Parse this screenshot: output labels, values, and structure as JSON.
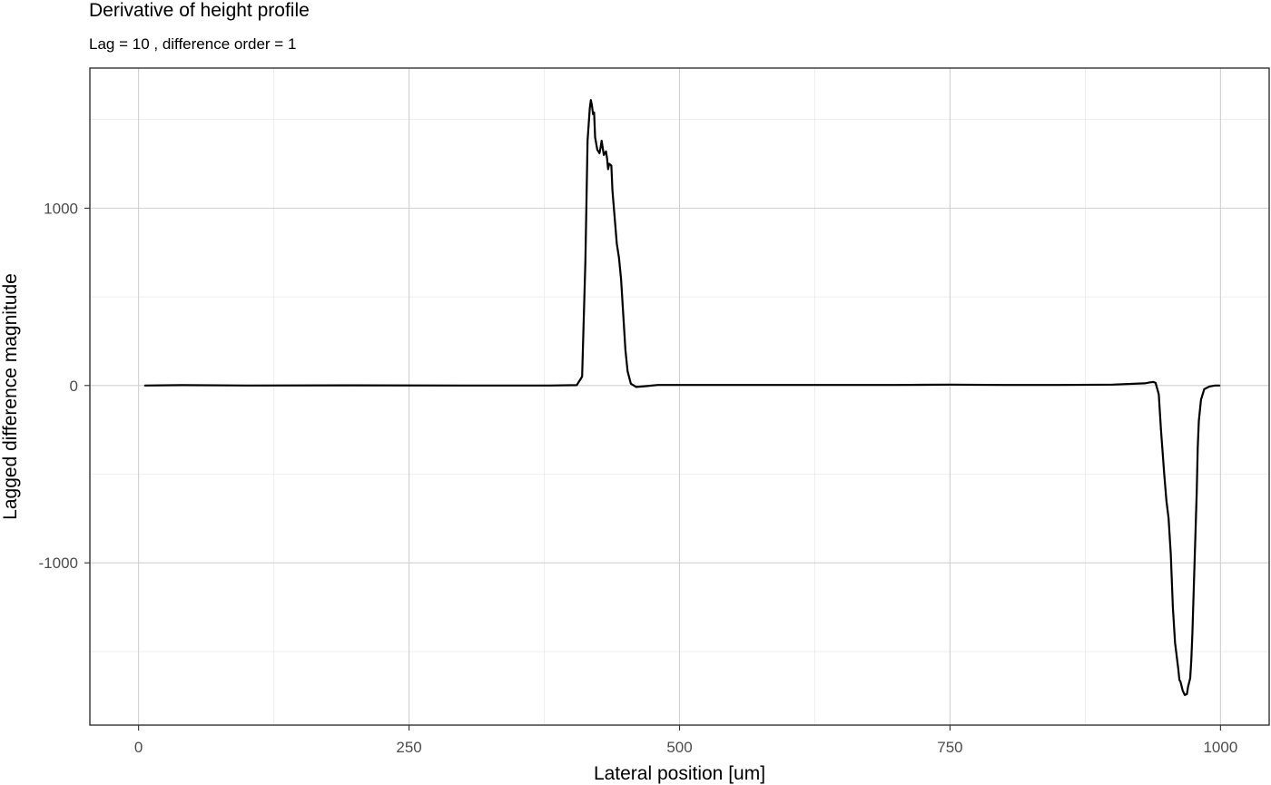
{
  "chart_data": {
    "type": "line",
    "title": "Derivative of height profile",
    "subtitle": "Lag = 10 , difference order = 1",
    "xlabel": "Lateral position [um]",
    "ylabel": "Lagged difference magnitude",
    "xlim": [
      -45,
      1045
    ],
    "ylim": [
      -1915,
      1790
    ],
    "x_ticks": [
      0,
      250,
      500,
      750,
      1000
    ],
    "x_tick_labels": [
      "0",
      "250",
      "500",
      "750",
      "1000"
    ],
    "x_minor_ticks": [
      125,
      375,
      625,
      875
    ],
    "y_ticks": [
      -1000,
      0,
      1000
    ],
    "y_tick_labels": [
      "-1000",
      "0",
      "1000"
    ],
    "y_minor_ticks": [
      -1500,
      -500,
      500,
      1500
    ],
    "grid": true,
    "series": [
      {
        "color": "#000000",
        "x": [
          6,
          40,
          100,
          200,
          300,
          380,
          405,
          410,
          413,
          415,
          417,
          418,
          419,
          420,
          421,
          422,
          424,
          426,
          427,
          428,
          430,
          432,
          433,
          434,
          435,
          437,
          438,
          440,
          442,
          444,
          446,
          448,
          450,
          452,
          455,
          460,
          470,
          480,
          500,
          550,
          600,
          650,
          700,
          750,
          800,
          850,
          900,
          930,
          935,
          938,
          940,
          943,
          945,
          948,
          950,
          952,
          954,
          956,
          958,
          960,
          961,
          962,
          963,
          965,
          967,
          969,
          970,
          972,
          973,
          974,
          975,
          976,
          977,
          978,
          979,
          980,
          982,
          985,
          990,
          995,
          999
        ],
        "y": [
          0,
          2,
          0,
          1,
          0,
          0,
          2,
          50,
          700,
          1380,
          1560,
          1610,
          1580,
          1530,
          1540,
          1400,
          1330,
          1310,
          1340,
          1380,
          1300,
          1320,
          1280,
          1220,
          1250,
          1240,
          1100,
          950,
          800,
          720,
          600,
          400,
          200,
          80,
          10,
          -8,
          -3,
          3,
          3,
          3,
          3,
          3,
          3,
          5,
          3,
          3,
          5,
          12,
          18,
          20,
          15,
          -50,
          -250,
          -500,
          -650,
          -750,
          -950,
          -1250,
          -1450,
          -1550,
          -1600,
          -1660,
          -1670,
          -1720,
          -1745,
          -1740,
          -1700,
          -1650,
          -1550,
          -1400,
          -1200,
          -1000,
          -800,
          -600,
          -350,
          -200,
          -80,
          -20,
          -5,
          0,
          0
        ]
      }
    ]
  }
}
